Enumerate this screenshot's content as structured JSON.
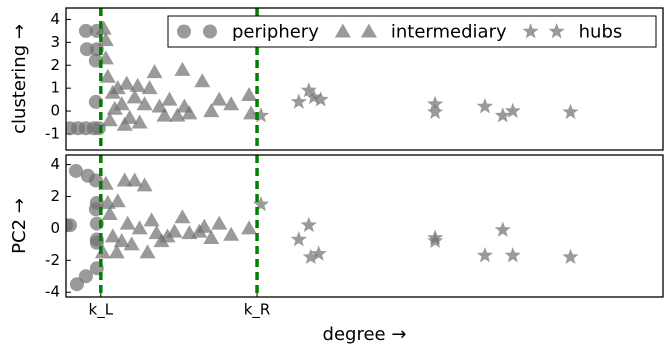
{
  "chart_data": [
    {
      "type": "scatter",
      "ylabel": "clustering →",
      "xlim": [
        0,
        60
      ],
      "ylim": [
        -1.7,
        4.5
      ],
      "yticks": [
        -1,
        0,
        1,
        2,
        3,
        4
      ],
      "vlines": [
        3.5,
        19.2
      ],
      "vline_color": "#008000",
      "alpha": 0.7,
      "legend": "upper right",
      "series": [
        {
          "name": "periphery",
          "marker": "circle",
          "color": "#6f6f6f",
          "x": [
            0.4,
            1.2,
            2.0,
            2.8,
            3.3,
            2.0,
            3.1,
            2.1,
            3.1,
            3.0,
            3.0
          ],
          "values": [
            -0.75,
            -0.75,
            -0.75,
            -0.75,
            -0.75,
            3.5,
            3.5,
            2.7,
            2.7,
            2.2,
            0.4
          ]
        },
        {
          "name": "intermediary",
          "marker": "triangle",
          "color": "#6f6f6f",
          "x": [
            3.8,
            4.0,
            4.0,
            4.2,
            4.7,
            5.2,
            5.6,
            6.1,
            6.4,
            6.9,
            7.4,
            7.9,
            8.4,
            8.9,
            9.4,
            9.9,
            10.4,
            11.2,
            11.7,
            11.9,
            12.4,
            13.7,
            14.6,
            15.4,
            16.6,
            18.4,
            18.6,
            4.4,
            4.9,
            5.9,
            7.2
          ],
          "values": [
            3.6,
            3.1,
            2.3,
            1.5,
            0.8,
            1.0,
            0.3,
            1.2,
            -0.3,
            0.6,
            -0.5,
            0.3,
            1.0,
            1.7,
            0.2,
            -0.2,
            0.5,
            -0.2,
            1.8,
            0.2,
            -0.1,
            1.3,
            0.0,
            0.5,
            0.3,
            0.7,
            -0.1,
            -0.4,
            0.1,
            -0.6,
            1.1
          ]
        },
        {
          "name": "hubs",
          "marker": "star",
          "color": "#6f6f6f",
          "x": [
            19.6,
            23.4,
            24.4,
            24.9,
            25.6,
            37.1,
            37.1,
            42.1,
            43.9,
            44.9,
            50.7
          ],
          "values": [
            -0.2,
            0.4,
            0.9,
            0.6,
            0.5,
            0.3,
            -0.05,
            0.2,
            -0.2,
            0.0,
            -0.05
          ]
        }
      ]
    },
    {
      "type": "scatter",
      "ylabel": "PC2 →",
      "xlabel": "degree →",
      "xlim": [
        0,
        60
      ],
      "ylim": [
        -4.3,
        4.6
      ],
      "yticks": [
        -4,
        -2,
        0,
        2,
        4
      ],
      "xticks": [
        {
          "value": 3.5,
          "label": "k_L"
        },
        {
          "value": 19.2,
          "label": "k_R"
        }
      ],
      "vlines": [
        3.5,
        19.2
      ],
      "vline_color": "#008000",
      "alpha": 0.7,
      "series": [
        {
          "marker": "circle",
          "color": "#6f6f6f",
          "x": [
            1.0,
            2.2,
            3.0,
            0.0,
            0.4,
            3.1,
            3.1,
            3.1,
            3.1,
            3.1,
            2.0,
            1.1,
            3.0
          ],
          "values": [
            3.6,
            3.3,
            3.0,
            0.2,
            0.2,
            1.6,
            0.3,
            -0.7,
            -0.9,
            -2.5,
            -3.0,
            -3.5,
            1.2
          ]
        },
        {
          "marker": "triangle",
          "color": "#6f6f6f",
          "x": [
            4.0,
            4.4,
            4.7,
            5.1,
            5.6,
            5.9,
            6.2,
            6.6,
            6.9,
            7.4,
            7.9,
            8.2,
            8.6,
            9.1,
            9.6,
            10.2,
            10.9,
            11.7,
            12.4,
            13.4,
            13.9,
            14.6,
            15.4,
            16.6,
            18.4,
            3.7,
            4.2,
            5.2
          ],
          "values": [
            2.8,
            0.9,
            -0.5,
            -1.5,
            -0.8,
            3.0,
            0.3,
            -1.0,
            3.0,
            0.0,
            2.7,
            -1.5,
            0.5,
            -0.3,
            -0.8,
            -0.5,
            -0.2,
            0.7,
            -0.3,
            -0.2,
            0.1,
            -0.6,
            0.3,
            -0.4,
            0.0,
            -1.5,
            1.6,
            1.7
          ]
        },
        {
          "marker": "star",
          "color": "#6f6f6f",
          "x": [
            19.6,
            23.4,
            24.4,
            24.6,
            25.4,
            37.1,
            37.1,
            42.1,
            43.9,
            44.9,
            50.7
          ],
          "values": [
            1.5,
            -0.7,
            0.2,
            -1.8,
            -1.6,
            -0.6,
            -0.8,
            -1.7,
            -0.1,
            -1.7,
            -1.8
          ]
        }
      ]
    }
  ]
}
